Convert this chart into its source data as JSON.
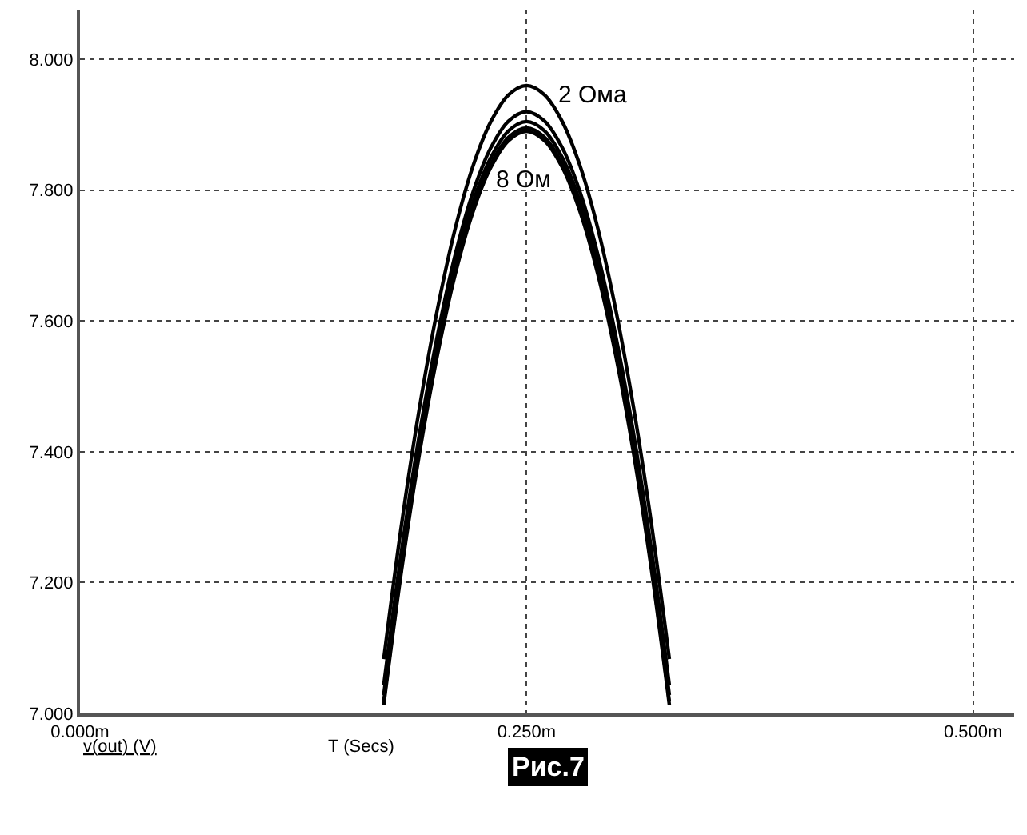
{
  "chart_data": {
    "type": "line",
    "xlabel": "T (Secs)",
    "x": [
      0.17,
      0.18,
      0.19,
      0.2,
      0.21,
      0.22,
      0.23,
      0.24,
      0.25,
      0.26,
      0.27,
      0.28,
      0.29,
      0.3,
      0.31,
      0.32,
      0.33
    ],
    "series": [
      {
        "name": "2 Ома",
        "color": "#000000",
        "values": [
          7.083,
          7.289,
          7.467,
          7.617,
          7.741,
          7.837,
          7.905,
          7.946,
          7.96,
          7.946,
          7.905,
          7.837,
          7.741,
          7.617,
          7.467,
          7.289,
          7.083
        ]
      },
      {
        "color": "#000000",
        "values": [
          7.043,
          7.249,
          7.427,
          7.577,
          7.701,
          7.797,
          7.865,
          7.906,
          7.92,
          7.906,
          7.865,
          7.797,
          7.701,
          7.577,
          7.427,
          7.249,
          7.043
        ]
      },
      {
        "color": "#000000",
        "values": [
          7.028,
          7.234,
          7.412,
          7.562,
          7.686,
          7.782,
          7.85,
          7.891,
          7.905,
          7.891,
          7.85,
          7.782,
          7.686,
          7.562,
          7.412,
          7.234,
          7.028
        ]
      },
      {
        "color": "#000000",
        "values": [
          7.018,
          7.224,
          7.402,
          7.552,
          7.676,
          7.772,
          7.84,
          7.881,
          7.895,
          7.881,
          7.84,
          7.772,
          7.676,
          7.552,
          7.402,
          7.224,
          7.018
        ]
      },
      {
        "name": "8 Ом",
        "color": "#000000",
        "values": [
          7.013,
          7.219,
          7.397,
          7.547,
          7.671,
          7.767,
          7.835,
          7.876,
          7.89,
          7.876,
          7.835,
          7.767,
          7.671,
          7.547,
          7.397,
          7.219,
          7.013
        ]
      }
    ],
    "xlim": [
      0,
      0.523
    ],
    "xticks": [
      {
        "value": 0,
        "label": "0.000m"
      },
      {
        "value": 0.25,
        "label": "0.250m"
      },
      {
        "value": 0.5,
        "label": "0.500m"
      }
    ],
    "ylim": [
      7.0,
      8.076
    ],
    "yticks": [
      {
        "value": 7.0,
        "label": "7.000"
      },
      {
        "value": 7.2,
        "label": "7.200"
      },
      {
        "value": 7.4,
        "label": "7.400"
      },
      {
        "value": 7.6,
        "label": "7.600"
      },
      {
        "value": 7.8,
        "label": "7.800"
      },
      {
        "value": 8.0,
        "label": "8.000"
      }
    ],
    "annotations": [
      "v(out) (V)",
      "Рис.7"
    ],
    "grid": true,
    "marker": "none",
    "line_style": "solid"
  }
}
